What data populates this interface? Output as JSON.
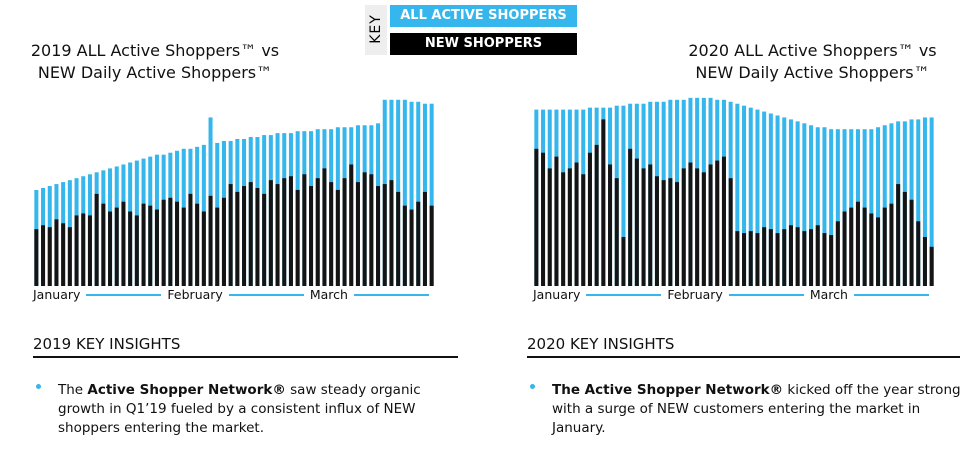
{
  "legend": {
    "title": "KEY"
  },
  "chart_data": [
    {
      "type": "bar",
      "title": "2019 ALL Active Shoppers™ vs\nNEW Daily Active Shoppers™",
      "x_labels": [
        "January",
        "February",
        "March"
      ],
      "ylim": [
        0,
        100
      ],
      "series": [
        {
          "name": "ALL ACTIVE SHOPPERS",
          "color": "#35b6ec",
          "values": [
            49,
            50,
            51,
            52,
            53,
            54,
            55,
            56,
            57,
            58,
            59,
            60,
            61,
            62,
            63,
            64,
            65,
            66,
            67,
            67,
            68,
            69,
            70,
            70,
            71,
            72,
            86,
            73,
            74,
            74,
            75,
            75,
            76,
            76,
            77,
            77,
            78,
            78,
            78,
            79,
            79,
            79,
            80,
            80,
            80,
            81,
            81,
            81,
            82,
            82,
            82,
            83,
            95,
            95,
            95,
            95,
            94,
            94,
            93,
            93
          ]
        },
        {
          "name": "NEW SHOPPERS",
          "color": "#141414",
          "values": [
            29,
            31,
            30,
            34,
            32,
            30,
            36,
            37,
            36,
            47,
            42,
            38,
            40,
            43,
            38,
            36,
            42,
            41,
            39,
            44,
            45,
            43,
            40,
            47,
            42,
            38,
            46,
            40,
            45,
            52,
            48,
            51,
            53,
            50,
            47,
            54,
            52,
            55,
            56,
            49,
            57,
            51,
            55,
            60,
            53,
            49,
            55,
            62,
            53,
            58,
            57,
            51,
            52,
            54,
            48,
            41,
            39,
            43,
            48,
            41
          ]
        }
      ]
    },
    {
      "type": "bar",
      "title": "2020 ALL Active Shoppers™ vs\nNEW Daily Active Shoppers™",
      "x_labels": [
        "January",
        "February",
        "March"
      ],
      "ylim": [
        0,
        100
      ],
      "series": [
        {
          "name": "ALL ACTIVE SHOPPERS",
          "color": "#35b6ec",
          "values": [
            90,
            90,
            90,
            90,
            90,
            90,
            90,
            90,
            91,
            91,
            91,
            91,
            92,
            92,
            93,
            93,
            93,
            94,
            94,
            94,
            95,
            95,
            95,
            96,
            96,
            96,
            96,
            95,
            95,
            94,
            93,
            92,
            91,
            90,
            89,
            88,
            87,
            86,
            85,
            84,
            83,
            82,
            81,
            81,
            80,
            80,
            80,
            80,
            80,
            80,
            80,
            81,
            82,
            83,
            84,
            84,
            85,
            85,
            86,
            86
          ]
        },
        {
          "name": "NEW SHOPPERS",
          "color": "#141414",
          "values": [
            70,
            68,
            60,
            66,
            58,
            60,
            63,
            57,
            68,
            72,
            85,
            62,
            55,
            25,
            70,
            65,
            60,
            62,
            56,
            54,
            55,
            53,
            60,
            63,
            60,
            58,
            62,
            64,
            66,
            55,
            28,
            27,
            28,
            27,
            30,
            29,
            27,
            29,
            31,
            30,
            28,
            29,
            31,
            27,
            26,
            33,
            38,
            40,
            43,
            40,
            37,
            35,
            40,
            42,
            52,
            48,
            44,
            33,
            25,
            20
          ]
        }
      ]
    }
  ],
  "insights": [
    {
      "heading": "2019 KEY INSIGHTS",
      "parts": [
        {
          "text": "The ",
          "bold": false
        },
        {
          "text": "Active Shopper Network®",
          "bold": true
        },
        {
          "text": " saw steady organic growth in Q1’19 fueled by a consistent influx of NEW shoppers entering the market.",
          "bold": false
        }
      ]
    },
    {
      "heading": "2020 KEY INSIGHTS",
      "parts": [
        {
          "text": "The Active Shopper Network®",
          "bold": true
        },
        {
          "text": " kicked off the year strong with a surge of NEW customers entering the market in January.",
          "bold": false
        }
      ]
    }
  ]
}
